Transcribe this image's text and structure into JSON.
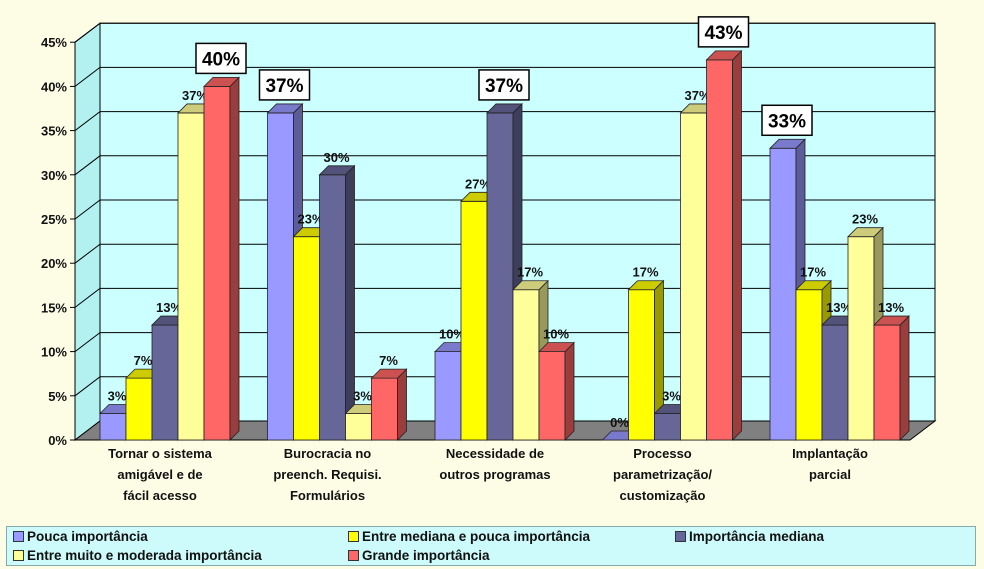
{
  "chart_data": {
    "type": "bar",
    "categories": [
      [
        "Tornar o sistema",
        "amigável e de",
        "fácil acesso"
      ],
      [
        "Burocracia no",
        "preench. Requisi.",
        "Formulários"
      ],
      [
        "Necessidade de",
        "outros programas"
      ],
      [
        "Processo",
        "parametrização/",
        "customização"
      ],
      [
        "Implantação",
        "parcial"
      ]
    ],
    "series": [
      {
        "name": "Pouca importância",
        "color": "#9999ff",
        "values": [
          3,
          37,
          10,
          0,
          33
        ],
        "labels": [
          "3%",
          "37%",
          "10%",
          "0%",
          "33%"
        ]
      },
      {
        "name": "Entre mediana e pouca importância",
        "color": "#ffff00",
        "values": [
          7,
          23,
          27,
          17,
          17
        ],
        "labels": [
          "7%",
          "23%",
          "27%",
          "17%",
          "17%"
        ]
      },
      {
        "name": "Importância mediana",
        "color": "#666699",
        "values": [
          13,
          30,
          37,
          3,
          13
        ],
        "labels": [
          "13%",
          "30%",
          "37%",
          "3%",
          "13%"
        ]
      },
      {
        "name": "Entre muito e moderada importância",
        "color": "#ffff99",
        "values": [
          37,
          3,
          17,
          37,
          23
        ],
        "labels": [
          "37%",
          "3%",
          "17%",
          "37%",
          "23%"
        ]
      },
      {
        "name": "Grande importância",
        "color": "#ff6666",
        "values": [
          40,
          7,
          10,
          43,
          13
        ],
        "labels": [
          "40%",
          "7%",
          "10%",
          "43%",
          "13%"
        ]
      }
    ],
    "boxed_labels": [
      [
        0,
        4
      ],
      [
        1,
        0
      ],
      [
        2,
        2
      ],
      [
        3,
        4
      ],
      [
        4,
        0
      ]
    ],
    "yticks": [
      "0%",
      "5%",
      "10%",
      "15%",
      "20%",
      "25%",
      "30%",
      "35%",
      "40%",
      "45%"
    ],
    "ylim": [
      0,
      45
    ],
    "grid": true,
    "legend_position": "bottom",
    "colors": {
      "wall": "#ccffff",
      "floor": "#808080",
      "gridline": "#000000"
    }
  },
  "legend": {
    "items": [
      "Pouca importância",
      "Entre mediana e pouca importância",
      "Importância mediana",
      "Entre muito e moderada importância",
      "Grande importância"
    ]
  }
}
